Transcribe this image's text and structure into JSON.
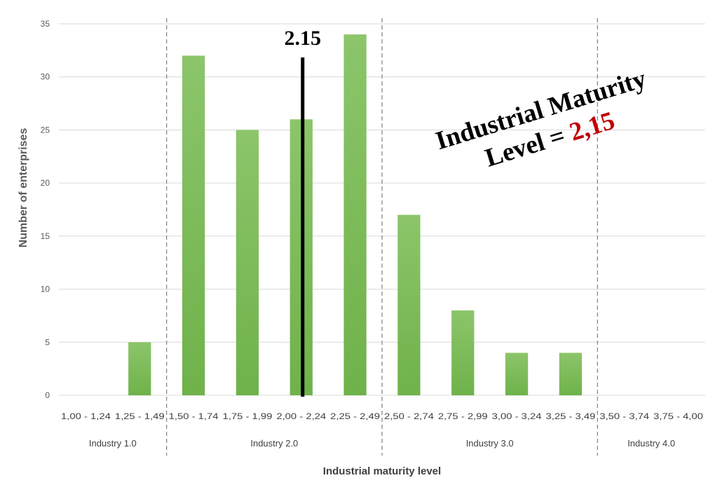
{
  "chart_data": {
    "type": "bar",
    "title": "",
    "xlabel": "Industrial maturity level",
    "ylabel": "Number of enterprises",
    "ylim": [
      0,
      35
    ],
    "yticks": [
      0,
      5,
      10,
      15,
      20,
      25,
      30,
      35
    ],
    "grid": true,
    "categories": [
      "1,00 - 1,24",
      "1,25 - 1,49",
      "1,50 - 1,74",
      "1,75 - 1,99",
      "2,00 - 2,24",
      "2,25 - 2,49",
      "2,50 - 2,74",
      "2,75 - 2,99",
      "3,00 - 3,24",
      "3,25 - 3,49",
      "3,50 - 3,74",
      "3,75 - 4,00"
    ],
    "values": [
      0,
      5,
      32,
      25,
      26,
      34,
      17,
      8,
      4,
      4,
      0,
      0
    ],
    "groups": [
      {
        "label": "Industry 1.0",
        "start": 0,
        "end": 1
      },
      {
        "label": "Industry 2.0",
        "start": 2,
        "end": 5
      },
      {
        "label": "Industry 3.0",
        "start": 6,
        "end": 9
      },
      {
        "label": "Industry 4.0",
        "start": 10,
        "end": 11
      }
    ],
    "marker": {
      "label": "2.15",
      "category_index": 4
    },
    "annotation": {
      "line1": "Industrial Maturity",
      "line2_prefix": "Level = ",
      "line2_value": "2,15"
    },
    "colors": {
      "bar": "#6fb24a",
      "bar_top": "#8cc56a",
      "marker": "#000000",
      "highlight": "#c00000",
      "grid": "#d9d9d9",
      "divider": "#808080"
    }
  }
}
